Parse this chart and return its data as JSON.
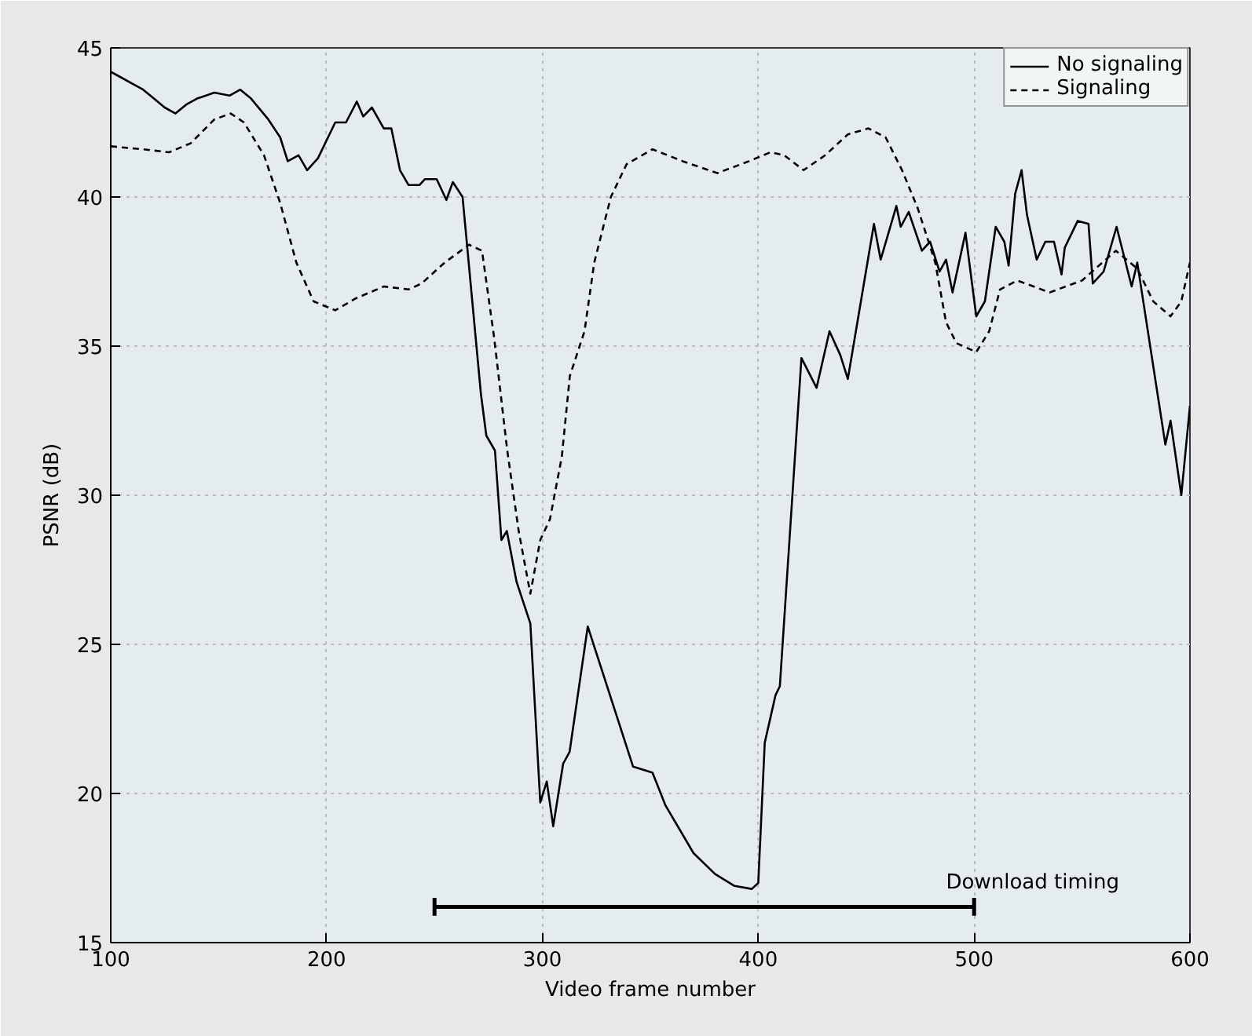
{
  "chart_data": {
    "type": "line",
    "xlabel": "Video frame number",
    "ylabel": "PSNR (dB)",
    "xlim": [
      100,
      600
    ],
    "ylim": [
      15,
      45
    ],
    "xticks": [
      100,
      200,
      300,
      400,
      500,
      600
    ],
    "yticks": [
      15,
      20,
      25,
      30,
      35,
      40,
      45
    ],
    "grid": true,
    "legend": "top right",
    "marker": "none",
    "series": [
      {
        "name": "No signaling",
        "color": "#000000",
        "line_style": "solid",
        "x": [
          100,
          105,
          110,
          115,
          120,
          125,
          130,
          135,
          140,
          148,
          155,
          160,
          165,
          173,
          178.5,
          182,
          187,
          191,
          196,
          204,
          209,
          214,
          217,
          221,
          226.5,
          230,
          234,
          238,
          243,
          245.6,
          251,
          255.5,
          258.5,
          263,
          271.5,
          274,
          278,
          281,
          283.5,
          288,
          294.4,
          299,
          302,
          305,
          309.6,
          312.6,
          321,
          342,
          351,
          357,
          370,
          380,
          389,
          397,
          400,
          403,
          408,
          410,
          414,
          420,
          427,
          433,
          438,
          441.5,
          453.6,
          456.7,
          464,
          466,
          469.7,
          475.8,
          479.6,
          484,
          487,
          490,
          496,
          501,
          505,
          510,
          514,
          516,
          519,
          522,
          524.5,
          529,
          533,
          537,
          540.5,
          542,
          548,
          553,
          555,
          560,
          566,
          573,
          575.6,
          588.6,
          591,
          596,
          600
        ],
        "values": [
          44.2,
          44.0,
          43.8,
          43.6,
          43.3,
          43.0,
          42.8,
          43.1,
          43.3,
          43.5,
          43.4,
          43.6,
          43.3,
          42.6,
          42.0,
          41.2,
          41.4,
          40.9,
          41.3,
          42.5,
          42.5,
          43.2,
          42.7,
          43.0,
          42.3,
          42.3,
          40.9,
          40.4,
          40.4,
          40.6,
          40.6,
          39.9,
          40.5,
          40.0,
          33.4,
          32.0,
          31.5,
          28.5,
          28.8,
          27.1,
          25.7,
          19.7,
          20.4,
          18.9,
          21.0,
          21.4,
          25.6,
          20.9,
          20.7,
          19.6,
          18.0,
          17.3,
          16.9,
          16.8,
          17.0,
          21.7,
          23.3,
          23.6,
          28.0,
          34.6,
          33.6,
          35.5,
          34.7,
          33.9,
          39.1,
          37.9,
          39.7,
          39.0,
          39.5,
          38.2,
          38.5,
          37.5,
          37.9,
          36.8,
          38.8,
          36.0,
          36.5,
          39.0,
          38.5,
          37.7,
          40.1,
          40.9,
          39.4,
          37.9,
          38.5,
          38.5,
          37.4,
          38.3,
          39.2,
          39.1,
          37.1,
          37.5,
          39.0,
          37.0,
          37.8,
          31.7,
          32.5,
          30.0,
          33.0
        ]
      },
      {
        "name": "Signaling",
        "color": "#000000",
        "line_style": "dashed",
        "x": [
          100,
          115,
          127,
          137,
          148,
          155.6,
          161.7,
          171,
          178.5,
          186,
          194,
          204,
          213.5,
          226.5,
          238,
          244,
          254.7,
          266,
          272,
          277.6,
          283.7,
          289,
          294.4,
          299,
          303.5,
          309,
          312.7,
          319.5,
          324,
          331.7,
          339,
          351,
          365,
          381,
          395.7,
          405.6,
          412,
          421,
          431,
          441.5,
          451,
          459,
          466.6,
          474,
          482,
          487,
          491.8,
          501,
          507,
          512,
          520,
          535,
          550,
          565.7,
          575.6,
          583,
          591,
          596,
          600
        ],
        "values": [
          41.7,
          41.6,
          41.5,
          41.8,
          42.6,
          42.8,
          42.5,
          41.4,
          39.8,
          37.8,
          36.5,
          36.2,
          36.6,
          37.0,
          36.9,
          37.1,
          37.8,
          38.4,
          38.2,
          35.3,
          31.5,
          28.8,
          26.7,
          28.5,
          29.2,
          31.3,
          34.0,
          35.5,
          37.8,
          40.0,
          41.1,
          41.6,
          41.2,
          40.8,
          41.2,
          41.5,
          41.4,
          40.9,
          41.4,
          42.1,
          42.3,
          42.0,
          40.9,
          39.6,
          37.8,
          35.8,
          35.1,
          34.8,
          35.5,
          36.9,
          37.2,
          36.8,
          37.2,
          38.2,
          37.6,
          36.5,
          36.0,
          36.5,
          37.8
        ]
      },
      {
        "color": "#000000",
        "line_style": "solid",
        "x": [
          250,
          500
        ],
        "values": [
          16.2,
          16.2
        ],
        "errors": [
          0.3,
          0.3
        ]
      }
    ],
    "annotations": [
      "Download timing"
    ]
  }
}
